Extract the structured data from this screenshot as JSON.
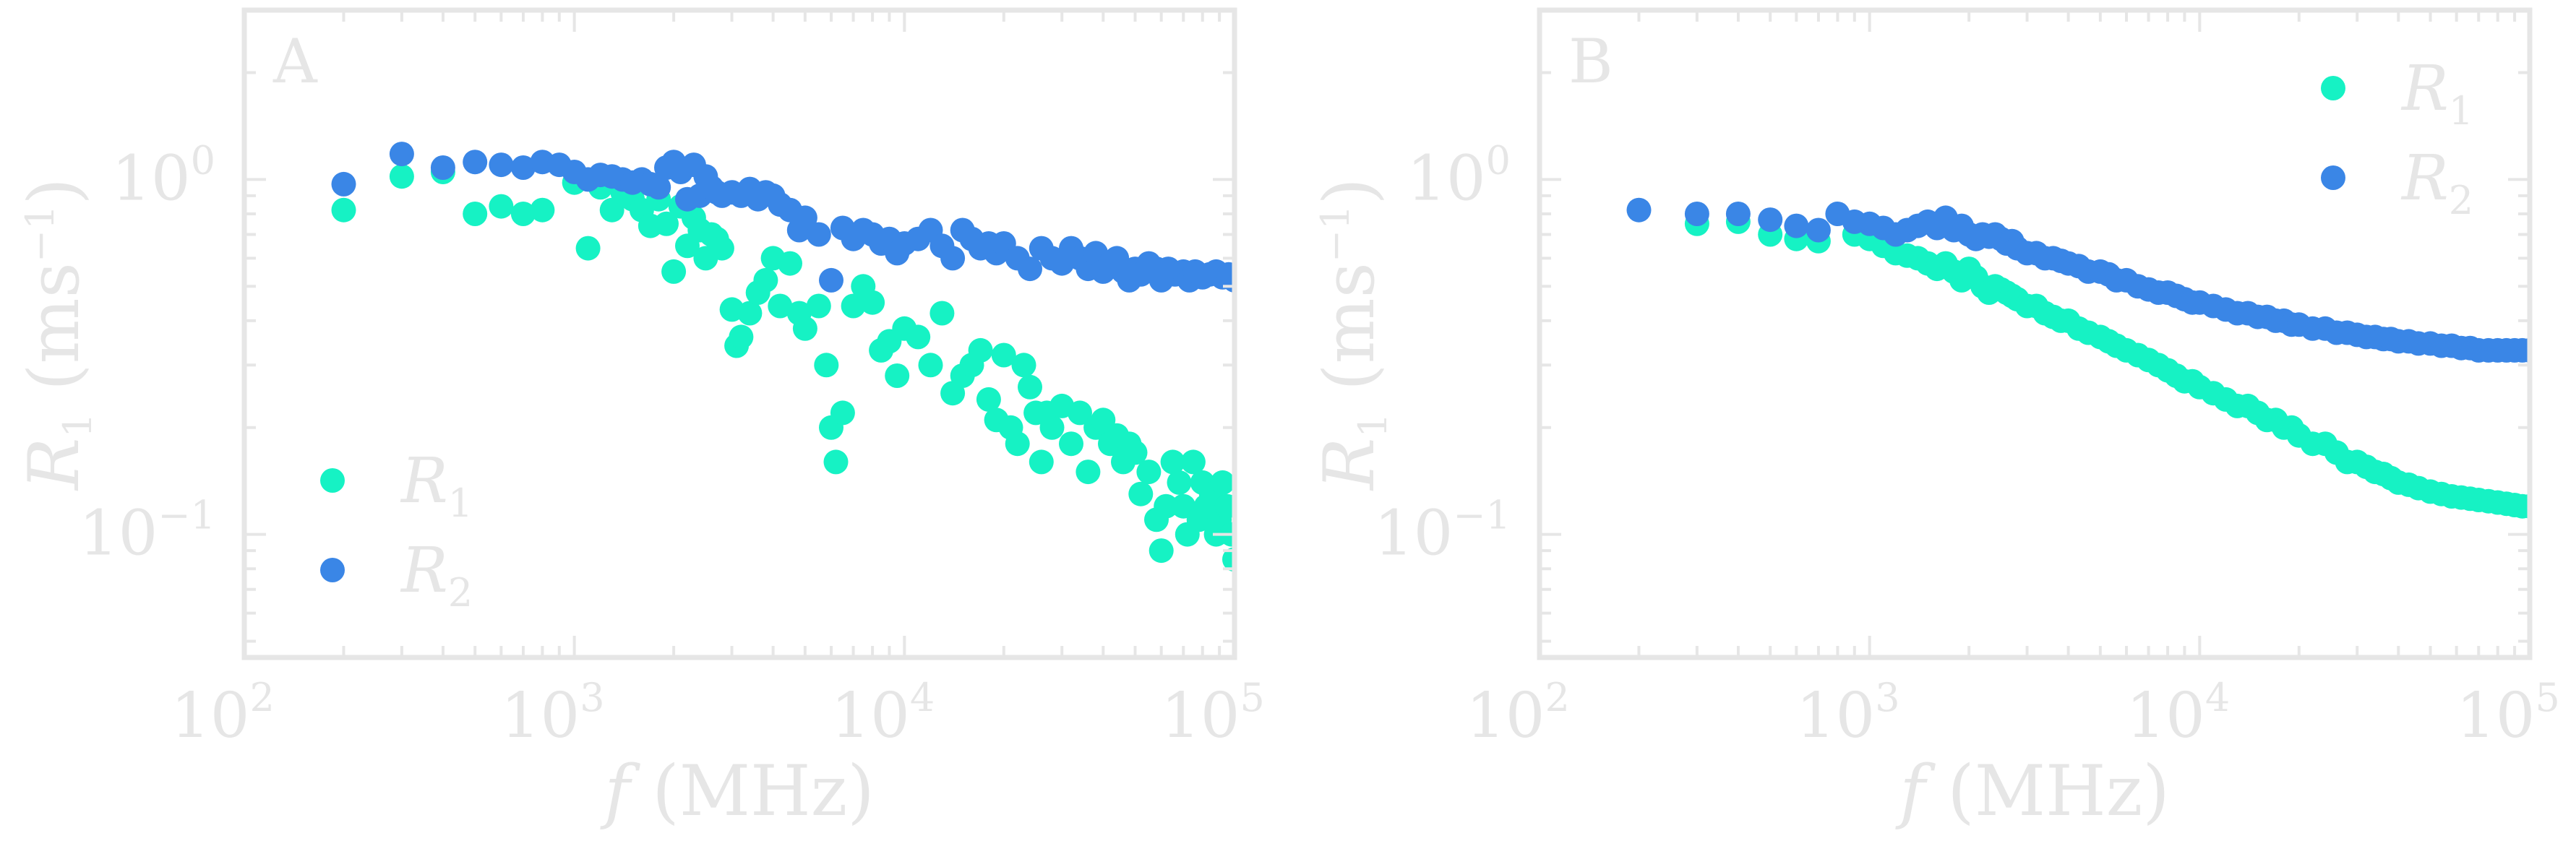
{
  "figure": {
    "shared_axes": {
      "xlabel": "f (MHz)",
      "ylabel": "R1 (ms−1)",
      "xscale": "log",
      "yscale": "log",
      "xlim": [
        100,
        100000
      ],
      "ylim": [
        0.045,
        3.0
      ],
      "x_tick_labels": [
        {
          "value": 100,
          "base": "10",
          "exp": "2"
        },
        {
          "value": 1000,
          "base": "10",
          "exp": "3"
        },
        {
          "value": 10000,
          "base": "10",
          "exp": "4"
        },
        {
          "value": 100000,
          "base": "10",
          "exp": "5"
        }
      ],
      "y_tick_labels": [
        {
          "value": 1,
          "base": "10",
          "exp": "0"
        },
        {
          "value": 0.1,
          "base": "10",
          "exp": "−1"
        }
      ]
    },
    "colors": {
      "R1": "#16f2c4",
      "R2": "#3a86e6",
      "text": "#e6e6e6"
    }
  },
  "chart_data": [
    {
      "type": "scatter",
      "panel": "A",
      "xlabel": "f (MHz)",
      "ylabel": "R1 (ms−1)",
      "xlim": [
        100,
        100000
      ],
      "ylim": [
        0.045,
        3.0
      ],
      "legend": "bottom-left",
      "series": [
        {
          "name": "R1",
          "x": [
            200,
            300,
            400,
            500,
            600,
            700,
            800,
            1000,
            1100,
            1200,
            1300,
            1400,
            1500,
            1600,
            1700,
            1800,
            1900,
            2000,
            2100,
            2200,
            2300,
            2400,
            2500,
            2600,
            2700,
            2800,
            3000,
            3100,
            3200,
            3400,
            3600,
            3800,
            4000,
            4200,
            4500,
            4800,
            5000,
            5500,
            5800,
            6000,
            6200,
            6500,
            7000,
            7500,
            8000,
            8500,
            9000,
            9500,
            10000,
            11000,
            12000,
            13000,
            14000,
            15000,
            16000,
            17000,
            18000,
            19000,
            20000,
            21000,
            22000,
            23000,
            24000,
            25000,
            26000,
            27000,
            28000,
            30000,
            32000,
            34000,
            36000,
            38000,
            40000,
            42000,
            44000,
            46000,
            48000,
            50000,
            52000,
            55000,
            58000,
            60000,
            62000,
            65000,
            68000,
            70000,
            72000,
            75000,
            78000,
            80000,
            82000,
            85000,
            88000,
            90000,
            92000,
            95000,
            98000,
            100000
          ],
          "y": [
            0.82,
            1.02,
            1.05,
            0.8,
            0.84,
            0.8,
            0.82,
            0.98,
            0.64,
            0.95,
            0.82,
            0.92,
            0.88,
            0.82,
            0.74,
            0.88,
            0.75,
            0.55,
            0.84,
            0.65,
            0.78,
            0.72,
            0.6,
            0.7,
            0.68,
            0.64,
            0.43,
            0.34,
            0.36,
            0.42,
            0.48,
            0.52,
            0.6,
            0.44,
            0.58,
            0.42,
            0.38,
            0.44,
            0.3,
            0.2,
            0.16,
            0.22,
            0.44,
            0.5,
            0.45,
            0.33,
            0.35,
            0.28,
            0.38,
            0.36,
            0.3,
            0.42,
            0.25,
            0.28,
            0.3,
            0.33,
            0.24,
            0.21,
            0.32,
            0.2,
            0.18,
            0.3,
            0.26,
            0.22,
            0.16,
            0.22,
            0.2,
            0.23,
            0.18,
            0.22,
            0.15,
            0.2,
            0.21,
            0.18,
            0.19,
            0.16,
            0.18,
            0.17,
            0.13,
            0.15,
            0.11,
            0.09,
            0.12,
            0.16,
            0.14,
            0.12,
            0.1,
            0.16,
            0.11,
            0.14,
            0.12,
            0.13,
            0.1,
            0.11,
            0.14,
            0.12,
            0.1,
            0.085
          ]
        },
        {
          "name": "R2",
          "x": [
            200,
            300,
            400,
            500,
            600,
            700,
            800,
            900,
            1000,
            1100,
            1200,
            1300,
            1400,
            1500,
            1600,
            1700,
            1800,
            1900,
            2000,
            2100,
            2200,
            2300,
            2400,
            2500,
            2600,
            2700,
            2800,
            3000,
            3200,
            3400,
            3600,
            3800,
            4000,
            4200,
            4500,
            4800,
            5000,
            5500,
            6000,
            6500,
            7000,
            7500,
            8000,
            8500,
            9000,
            9500,
            10000,
            11000,
            12000,
            13000,
            14000,
            15000,
            16000,
            17000,
            18000,
            19000,
            20000,
            22000,
            24000,
            26000,
            28000,
            30000,
            32000,
            34000,
            36000,
            38000,
            40000,
            42000,
            44000,
            46000,
            48000,
            50000,
            52000,
            55000,
            58000,
            60000,
            63000,
            66000,
            70000,
            73000,
            76000,
            80000,
            84000,
            88000,
            92000,
            96000,
            100000
          ],
          "y": [
            0.97,
            1.18,
            1.08,
            1.12,
            1.1,
            1.08,
            1.12,
            1.1,
            1.05,
            1.0,
            1.03,
            1.02,
            1.0,
            0.98,
            1.0,
            0.97,
            0.95,
            1.08,
            1.12,
            1.05,
            0.88,
            1.1,
            0.9,
            1.02,
            0.95,
            0.92,
            0.9,
            0.92,
            0.9,
            0.94,
            0.88,
            0.92,
            0.9,
            0.85,
            0.82,
            0.72,
            0.78,
            0.7,
            0.52,
            0.73,
            0.68,
            0.72,
            0.7,
            0.66,
            0.68,
            0.62,
            0.66,
            0.68,
            0.72,
            0.65,
            0.6,
            0.72,
            0.68,
            0.64,
            0.66,
            0.62,
            0.66,
            0.6,
            0.56,
            0.64,
            0.6,
            0.58,
            0.64,
            0.6,
            0.56,
            0.62,
            0.55,
            0.58,
            0.6,
            0.55,
            0.52,
            0.56,
            0.54,
            0.58,
            0.56,
            0.52,
            0.56,
            0.54,
            0.55,
            0.52,
            0.55,
            0.53,
            0.54,
            0.55,
            0.53,
            0.54,
            0.52
          ]
        }
      ]
    },
    {
      "type": "scatter",
      "panel": "B",
      "xlabel": "f (MHz)",
      "ylabel": "R1 (ms−1)",
      "xlim": [
        100,
        100000
      ],
      "ylim": [
        0.045,
        3.0
      ],
      "legend": "top-right",
      "series": [
        {
          "name": "R1",
          "x": [
            300,
            400,
            500,
            600,
            700,
            900,
            1000,
            1100,
            1200,
            1300,
            1400,
            1500,
            1600,
            1700,
            1800,
            1900,
            2000,
            2100,
            2200,
            2300,
            2400,
            2500,
            2600,
            2700,
            2800,
            3000,
            3200,
            3400,
            3600,
            3800,
            4000,
            4300,
            4600,
            5000,
            5300,
            5600,
            6000,
            6500,
            7000,
            7500,
            8000,
            8500,
            9000,
            9500,
            10000,
            11000,
            12000,
            13000,
            14000,
            15000,
            16000,
            17000,
            18000,
            19000,
            20000,
            22000,
            24000,
            26000,
            28000,
            30000,
            32000,
            34000,
            36000,
            38000,
            40000,
            43000,
            46000,
            50000,
            54000,
            58000,
            62000,
            66000,
            70000,
            75000,
            80000,
            85000,
            90000,
            95000,
            100000
          ],
          "y": [
            0.75,
            0.76,
            0.7,
            0.68,
            0.67,
            0.7,
            0.68,
            0.65,
            0.62,
            0.61,
            0.6,
            0.58,
            0.56,
            0.58,
            0.55,
            0.52,
            0.56,
            0.53,
            0.5,
            0.48,
            0.5,
            0.49,
            0.48,
            0.47,
            0.46,
            0.44,
            0.44,
            0.42,
            0.41,
            0.4,
            0.4,
            0.38,
            0.37,
            0.36,
            0.35,
            0.34,
            0.33,
            0.32,
            0.31,
            0.3,
            0.29,
            0.28,
            0.27,
            0.27,
            0.26,
            0.25,
            0.24,
            0.23,
            0.23,
            0.22,
            0.21,
            0.21,
            0.2,
            0.2,
            0.19,
            0.18,
            0.18,
            0.17,
            0.16,
            0.16,
            0.155,
            0.15,
            0.148,
            0.144,
            0.14,
            0.138,
            0.135,
            0.132,
            0.13,
            0.128,
            0.127,
            0.126,
            0.125,
            0.124,
            0.123,
            0.122,
            0.121,
            0.12,
            0.12
          ]
        },
        {
          "name": "R2",
          "x": [
            200,
            300,
            400,
            500,
            600,
            700,
            800,
            900,
            1000,
            1100,
            1200,
            1300,
            1400,
            1500,
            1600,
            1700,
            1800,
            1900,
            2000,
            2100,
            2200,
            2300,
            2400,
            2500,
            2600,
            2700,
            2800,
            3000,
            3200,
            3400,
            3600,
            3800,
            4000,
            4300,
            4600,
            5000,
            5300,
            5600,
            6000,
            6500,
            7000,
            7500,
            8000,
            8500,
            9000,
            9500,
            10000,
            11000,
            12000,
            13000,
            14000,
            15000,
            16000,
            17000,
            18000,
            19000,
            20000,
            22000,
            24000,
            26000,
            28000,
            30000,
            32000,
            34000,
            36000,
            38000,
            40000,
            43000,
            46000,
            50000,
            54000,
            58000,
            62000,
            66000,
            70000,
            75000,
            80000,
            85000,
            90000,
            95000,
            100000
          ],
          "y": [
            0.82,
            0.8,
            0.8,
            0.77,
            0.74,
            0.72,
            0.8,
            0.76,
            0.75,
            0.73,
            0.7,
            0.72,
            0.74,
            0.76,
            0.73,
            0.78,
            0.72,
            0.74,
            0.7,
            0.68,
            0.7,
            0.69,
            0.7,
            0.68,
            0.66,
            0.67,
            0.64,
            0.62,
            0.62,
            0.6,
            0.6,
            0.59,
            0.58,
            0.57,
            0.55,
            0.55,
            0.54,
            0.52,
            0.52,
            0.5,
            0.49,
            0.48,
            0.48,
            0.47,
            0.46,
            0.45,
            0.45,
            0.44,
            0.43,
            0.42,
            0.42,
            0.41,
            0.41,
            0.4,
            0.4,
            0.39,
            0.39,
            0.38,
            0.38,
            0.37,
            0.37,
            0.365,
            0.36,
            0.36,
            0.355,
            0.355,
            0.35,
            0.35,
            0.345,
            0.345,
            0.34,
            0.34,
            0.335,
            0.335,
            0.33,
            0.33,
            0.33,
            0.33,
            0.33,
            0.33,
            0.33
          ]
        }
      ]
    }
  ]
}
